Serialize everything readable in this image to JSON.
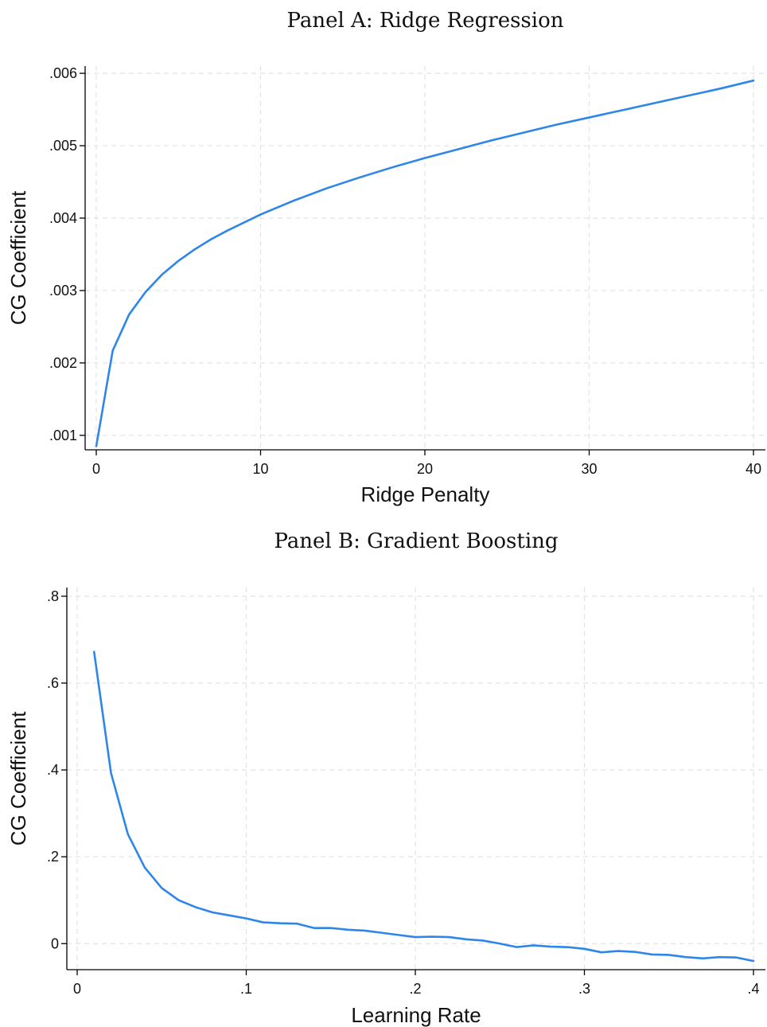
{
  "chart_data": [
    {
      "type": "line",
      "title": "Panel A: Ridge Regression",
      "xlabel": "Ridge Penalty",
      "ylabel": "CG Coefficient",
      "xlim": [
        0,
        40
      ],
      "ylim": [
        0.0008,
        0.0061
      ],
      "xticks": [
        0,
        10,
        20,
        30,
        40
      ],
      "xtick_labels": [
        "0",
        "10",
        "20",
        "30",
        "40"
      ],
      "yticks": [
        0.001,
        0.002,
        0.003,
        0.004,
        0.005,
        0.006
      ],
      "ytick_labels": [
        ".001",
        ".002",
        ".003",
        ".004",
        ".005",
        ".006"
      ],
      "grid": true,
      "legend": "none",
      "series": [
        {
          "color": "#2e86e8",
          "x": [
            0,
            1,
            2,
            3,
            4,
            5,
            6,
            7,
            8,
            9,
            10,
            12,
            14,
            16,
            18,
            20,
            22,
            24,
            26,
            28,
            30,
            32,
            34,
            36,
            38,
            40
          ],
          "y": [
            0.00085,
            0.00217,
            0.00267,
            0.00298,
            0.00322,
            0.00341,
            0.00357,
            0.00371,
            0.00383,
            0.00394,
            0.00405,
            0.00424,
            0.00441,
            0.00456,
            0.0047,
            0.00483,
            0.00495,
            0.00507,
            0.00518,
            0.00529,
            0.00539,
            0.00549,
            0.00559,
            0.00569,
            0.00579,
            0.0059
          ]
        }
      ]
    },
    {
      "type": "line",
      "title": "Panel B: Gradient Boosting",
      "xlabel": "Learning Rate",
      "ylabel": "CG Coefficient",
      "xlim": [
        0,
        0.4
      ],
      "ylim": [
        -0.06,
        0.82
      ],
      "xticks": [
        0,
        0.1,
        0.2,
        0.3,
        0.4
      ],
      "xtick_labels": [
        "0",
        ".1",
        ".2",
        ".3",
        ".4"
      ],
      "yticks": [
        0,
        0.2,
        0.4,
        0.6,
        0.8
      ],
      "ytick_labels": [
        "0",
        ".2",
        ".4",
        ".6",
        ".8"
      ],
      "grid": true,
      "legend": "none",
      "series": [
        {
          "color": "#2e86e8",
          "x": [
            0.01,
            0.02,
            0.03,
            0.04,
            0.05,
            0.06,
            0.07,
            0.08,
            0.09,
            0.1,
            0.11,
            0.12,
            0.13,
            0.14,
            0.15,
            0.16,
            0.17,
            0.18,
            0.19,
            0.2,
            0.21,
            0.22,
            0.23,
            0.24,
            0.25,
            0.26,
            0.27,
            0.28,
            0.29,
            0.3,
            0.31,
            0.32,
            0.33,
            0.34,
            0.35,
            0.36,
            0.37,
            0.38,
            0.39,
            0.4
          ],
          "y": [
            0.672,
            0.393,
            0.252,
            0.175,
            0.128,
            0.1,
            0.084,
            0.072,
            0.065,
            0.058,
            0.049,
            0.047,
            0.046,
            0.036,
            0.036,
            0.032,
            0.03,
            0.025,
            0.02,
            0.015,
            0.016,
            0.015,
            0.01,
            0.007,
            0.0,
            -0.008,
            -0.004,
            -0.007,
            -0.008,
            -0.012,
            -0.02,
            -0.017,
            -0.019,
            -0.025,
            -0.026,
            -0.031,
            -0.034,
            -0.031,
            -0.032,
            -0.04
          ]
        }
      ]
    }
  ]
}
